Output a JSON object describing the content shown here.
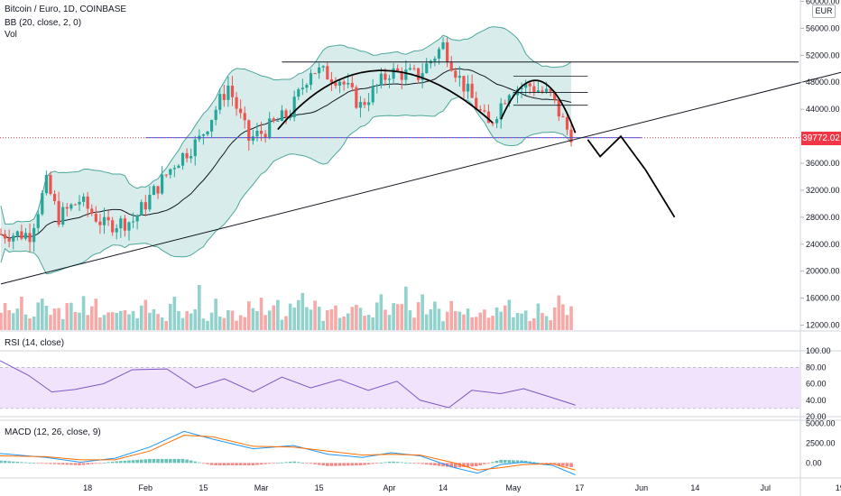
{
  "header": {
    "title": "Bitcoin / Euro, 1D, COINBASE",
    "bb_label": "BB (20, close, 2, 0)",
    "vol_label": "Vol",
    "currency": "EUR"
  },
  "price_tag": "39772.02",
  "rsi": {
    "label": "RSI (14, close)"
  },
  "macd": {
    "label": "MACD (12, 26, close, 9)"
  },
  "colors": {
    "up": "#26a69a",
    "down": "#ef5350",
    "bb_fill": "#c8e6e2",
    "bb_line": "#4ca79b",
    "rsi_band": "#f1e3fb",
    "rsi_line": "#7e57c2",
    "macd_line": "#2196f3",
    "signal_line": "#ff6d00",
    "price_tag": "#f23645",
    "support_line": "#2962ff"
  },
  "chart_data": [
    {
      "type": "candlestick",
      "title": "Bitcoin / Euro, 1D, COINBASE",
      "x_tick_labels": [
        "18",
        "Feb",
        "15",
        "Mar",
        "15",
        "Apr",
        "14",
        "May",
        "17",
        "Jun",
        "14",
        "Jul",
        "19"
      ],
      "y_tick_labels": [
        "12000.00",
        "16000.00",
        "20000.00",
        "24000.00",
        "28000.00",
        "32000.00",
        "36000.00",
        "40000.00",
        "44000.00",
        "48000.00",
        "52000.00",
        "56000.00",
        "60000.00"
      ],
      "ylim": [
        11000,
        61000
      ],
      "last_price": 39772.02,
      "close_path": [
        {
          "x": "2021-01-04",
          "y": 25500
        },
        {
          "x": "2021-01-08",
          "y": 33000
        },
        {
          "x": "2021-01-11",
          "y": 28000
        },
        {
          "x": "2021-01-16",
          "y": 30500
        },
        {
          "x": "2021-01-22",
          "y": 26800
        },
        {
          "x": "2021-01-29",
          "y": 27500
        },
        {
          "x": "2021-02-08",
          "y": 36000
        },
        {
          "x": "2021-02-14",
          "y": 39500
        },
        {
          "x": "2021-02-21",
          "y": 47500
        },
        {
          "x": "2021-02-26",
          "y": 39500
        },
        {
          "x": "2021-03-01",
          "y": 40500
        },
        {
          "x": "2021-03-08",
          "y": 43500
        },
        {
          "x": "2021-03-13",
          "y": 50000
        },
        {
          "x": "2021-03-20",
          "y": 48500
        },
        {
          "x": "2021-03-25",
          "y": 44500
        },
        {
          "x": "2021-04-01",
          "y": 49500
        },
        {
          "x": "2021-04-08",
          "y": 49000
        },
        {
          "x": "2021-04-14",
          "y": 53500
        },
        {
          "x": "2021-04-18",
          "y": 48500
        },
        {
          "x": "2021-04-25",
          "y": 41500
        },
        {
          "x": "2021-04-30",
          "y": 47000
        },
        {
          "x": "2021-05-05",
          "y": 47500
        },
        {
          "x": "2021-05-10",
          "y": 46000
        },
        {
          "x": "2021-05-14",
          "y": 41000
        },
        {
          "x": "2021-05-16",
          "y": 39772
        }
      ],
      "drawings": {
        "horizontal_levels": [
          51000,
          39800
        ],
        "trendline": [
          {
            "x": "2020-12-28",
            "y": 18100
          },
          {
            "x": "2021-07-24",
            "y": 50200
          }
        ],
        "projection": [
          {
            "x": "2021-05-19",
            "y": 39500
          },
          {
            "x": "2021-05-22",
            "y": 37000
          },
          {
            "x": "2021-05-27",
            "y": 40000
          },
          {
            "x": "2021-06-02",
            "y": 35000
          },
          {
            "x": "2021-06-09",
            "y": 28000
          }
        ]
      }
    },
    {
      "type": "bar",
      "title": "Vol",
      "series": [
        {
          "name": "Vol",
          "values": [
            0.3,
            0.45,
            0.6,
            0.25,
            0.35,
            0.5,
            0.4,
            0.28,
            0.3,
            0.42,
            0.55,
            0.38,
            0.33,
            0.48,
            0.36,
            0.3,
            0.44,
            0.52,
            0.34,
            0.4,
            0.62,
            0.45,
            0.5,
            0.7,
            0.38
          ]
        }
      ]
    },
    {
      "type": "line",
      "title": "RSI (14, close)",
      "y_tick_labels": [
        "20.00",
        "40.00",
        "60.00",
        "80.00",
        "100.00"
      ],
      "ylim": [
        20,
        100
      ],
      "band": [
        30,
        80
      ],
      "series": [
        {
          "name": "RSI (14, close)",
          "x": [
            0,
            5,
            9,
            13,
            18,
            23,
            29,
            34,
            39,
            44,
            49,
            54,
            59,
            64,
            69,
            73,
            78,
            82,
            87,
            91,
            96,
            100
          ],
          "values": [
            88,
            70,
            50,
            53,
            60,
            77,
            78,
            55,
            66,
            50,
            68,
            55,
            65,
            52,
            63,
            40,
            31,
            52,
            48,
            54,
            43,
            34
          ]
        }
      ]
    },
    {
      "type": "line",
      "title": "MACD (12, 26, close, 9)",
      "y_tick_labels": [
        "0.00",
        "2500.00",
        "5000.00"
      ],
      "ylim": [
        -1900,
        5400
      ],
      "series": [
        {
          "name": "MACD",
          "x": [
            0,
            8,
            14,
            20,
            26,
            32,
            37,
            44,
            51,
            57,
            63,
            68,
            73,
            79,
            83,
            87,
            91,
            96,
            100
          ],
          "values": [
            1200,
            700,
            100,
            600,
            2000,
            4000,
            3000,
            1800,
            2200,
            1100,
            700,
            1300,
            900,
            -600,
            -1300,
            -200,
            100,
            -300,
            -1500
          ]
        },
        {
          "name": "Signal",
          "x": [
            0,
            8,
            14,
            20,
            26,
            32,
            37,
            44,
            51,
            57,
            63,
            68,
            73,
            79,
            83,
            87,
            91,
            96,
            100
          ],
          "values": [
            900,
            800,
            400,
            400,
            1500,
            3500,
            3300,
            2100,
            2000,
            1500,
            1000,
            1100,
            1000,
            0,
            -900,
            -600,
            -200,
            -100,
            -900
          ]
        }
      ]
    }
  ]
}
